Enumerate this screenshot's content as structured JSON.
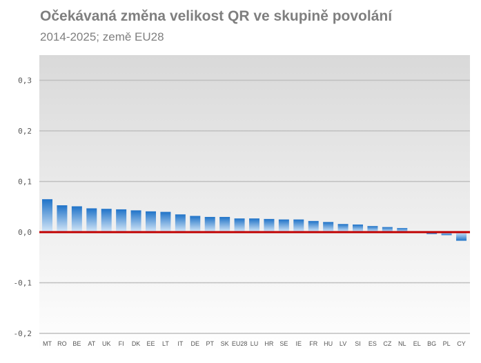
{
  "header": {
    "title": "Očekávaná změna velikost QR ve skupině povolání",
    "subtitle": "2014-2025; země EU28"
  },
  "chart_data": {
    "type": "bar",
    "title": "Očekávaná změna velikost QR ve skupině povolání",
    "subtitle": "2014-2025; země EU28",
    "xlabel": "",
    "ylabel": "",
    "ylim": [
      -0.2,
      0.35
    ],
    "yticks": [
      0.3,
      0.2,
      0.1,
      0.0,
      -0.1,
      -0.2
    ],
    "ytick_labels": [
      "0,3",
      "0,2",
      "0,1",
      "0,0",
      "-0,1",
      "-0,2"
    ],
    "grid": true,
    "legend": "none",
    "categories": [
      "MT",
      "RO",
      "BE",
      "AT",
      "UK",
      "FI",
      "DK",
      "EE",
      "LT",
      "IT",
      "DE",
      "PT",
      "SK",
      "EU28",
      "LU",
      "HR",
      "SE",
      "IE",
      "FR",
      "HU",
      "LV",
      "SI",
      "ES",
      "CZ",
      "NL",
      "EL",
      "BG",
      "PL",
      "CY"
    ],
    "values": [
      0.065,
      0.053,
      0.051,
      0.047,
      0.046,
      0.045,
      0.043,
      0.041,
      0.04,
      0.035,
      0.032,
      0.03,
      0.03,
      0.027,
      0.027,
      0.026,
      0.025,
      0.025,
      0.022,
      0.02,
      0.016,
      0.015,
      0.012,
      0.01,
      0.008,
      0.0,
      -0.004,
      -0.006,
      -0.017
    ],
    "colors": {
      "bar_top": "#1f73c8",
      "bar_bottom": "#d6e8f8",
      "zero_line": "#c00000",
      "grid": "#bfbfbf",
      "plot_bg_top": "#d9d9d9",
      "plot_bg_bottom": "#ffffff"
    }
  }
}
